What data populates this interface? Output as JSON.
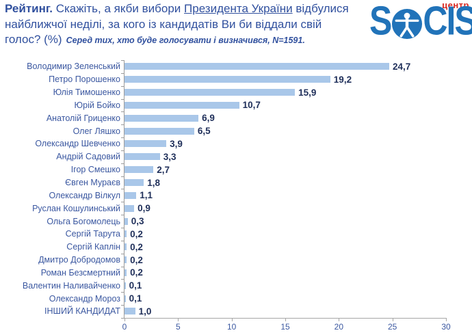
{
  "header": {
    "line1_bold": "Рейтинг.",
    "line1_pre": "Скажіть, а якби вибори",
    "line1_underlined": "Президента України",
    "line1_post": "відбулися",
    "line2": "найближчої неділі, за кого із кандидатів Ви би віддали свій",
    "line3_main": "голос? (%)",
    "subtitle": "Серед тих, хто буде голосувати і визначився, N=1591."
  },
  "logo": {
    "brand_first_letter": "S",
    "brand_rest": "CIS",
    "brand_full": "SOCIS",
    "sublabel": "центр",
    "person_icon": "vitruvian-person-icon",
    "colors": {
      "brand_blue": "#2173b9",
      "sublabel_red": "#d8261f"
    }
  },
  "chart_data": {
    "type": "bar",
    "orientation": "horizontal",
    "title": "Рейтинг. Скажіть, а якби вибори Президента України відбулися найближчої неділі, за кого із кандидатів Ви би віддали свій голос? (%)",
    "subtitle": "Серед тих, хто буде голосувати і визначився, N=1591.",
    "categories": [
      "Володимир Зеленський",
      "Петро Порошенко",
      "Юлія Тимошенко",
      "Юрій Бойко",
      "Анатолій Гриценко",
      "Олег Ляшко",
      "Олександр Шевченко",
      "Андрій Садовий",
      "Ігор Смешко",
      "Євген Мураєв",
      "Олександр Вілкул",
      "Руслан Кошулинський",
      "Ольга Богомолець",
      "Сергій Тарута",
      "Сергій Каплін",
      "Дмитро Добродомов",
      "Роман Безсмертний",
      "Валентин Наливайченко",
      "Олександр Мороз",
      "ІНШИЙ КАНДИДАТ"
    ],
    "values": [
      24.7,
      19.2,
      15.9,
      10.7,
      6.9,
      6.5,
      3.9,
      3.3,
      2.7,
      1.8,
      1.1,
      0.9,
      0.3,
      0.2,
      0.2,
      0.2,
      0.2,
      0.1,
      0.1,
      1.0
    ],
    "display_values": [
      "24,7",
      "19,2",
      "15,9",
      "10,7",
      "6,9",
      "6,5",
      "3,9",
      "3,3",
      "2,7",
      "1,8",
      "1,1",
      "0,9",
      "0,3",
      "0,2",
      "0,2",
      "0,2",
      "0,2",
      "0,1",
      "0,1",
      "1,0"
    ],
    "xlabel": "",
    "ylabel": "",
    "xlim": [
      0,
      30
    ],
    "xticks": [
      0,
      5,
      10,
      15,
      20,
      25,
      30
    ],
    "grid": false,
    "legend": false,
    "bar_color": "#a9c7e9",
    "category_label_color": "#3a57a0",
    "value_label_color": "#1f2f5a",
    "axis_color": "#a6a6a6"
  }
}
